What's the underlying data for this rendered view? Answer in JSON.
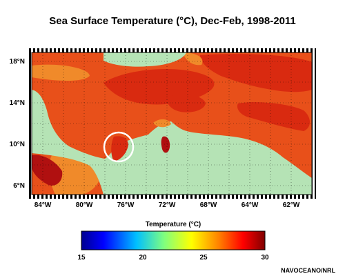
{
  "title": "Sea Surface Temperature (°C), Dec-Feb, 1998-2011",
  "map": {
    "lat_labels": [
      "18°N",
      "14°N",
      "10°N",
      "6°N"
    ],
    "lon_labels": [
      "84°W",
      "80°W",
      "76°W",
      "72°W",
      "68°W",
      "64°W",
      "62°W"
    ],
    "land_color": "#b5e3b5",
    "ocean_colors": [
      "#e8501a",
      "#d92a10",
      "#f08a2a",
      "#b01010"
    ],
    "highlight": "white circle around the Gulf of Uraba area"
  },
  "colorbar": {
    "title": "Temperature (°C)",
    "ticks": [
      "15",
      "20",
      "25",
      "30"
    ],
    "range": [
      15,
      30
    ],
    "colors": [
      "#00008f",
      "#0000ff",
      "#00bfff",
      "#7fff7f",
      "#ffff00",
      "#ff8000",
      "#ff0000",
      "#800000"
    ]
  },
  "credit": "NAVOCEANO/NRL"
}
